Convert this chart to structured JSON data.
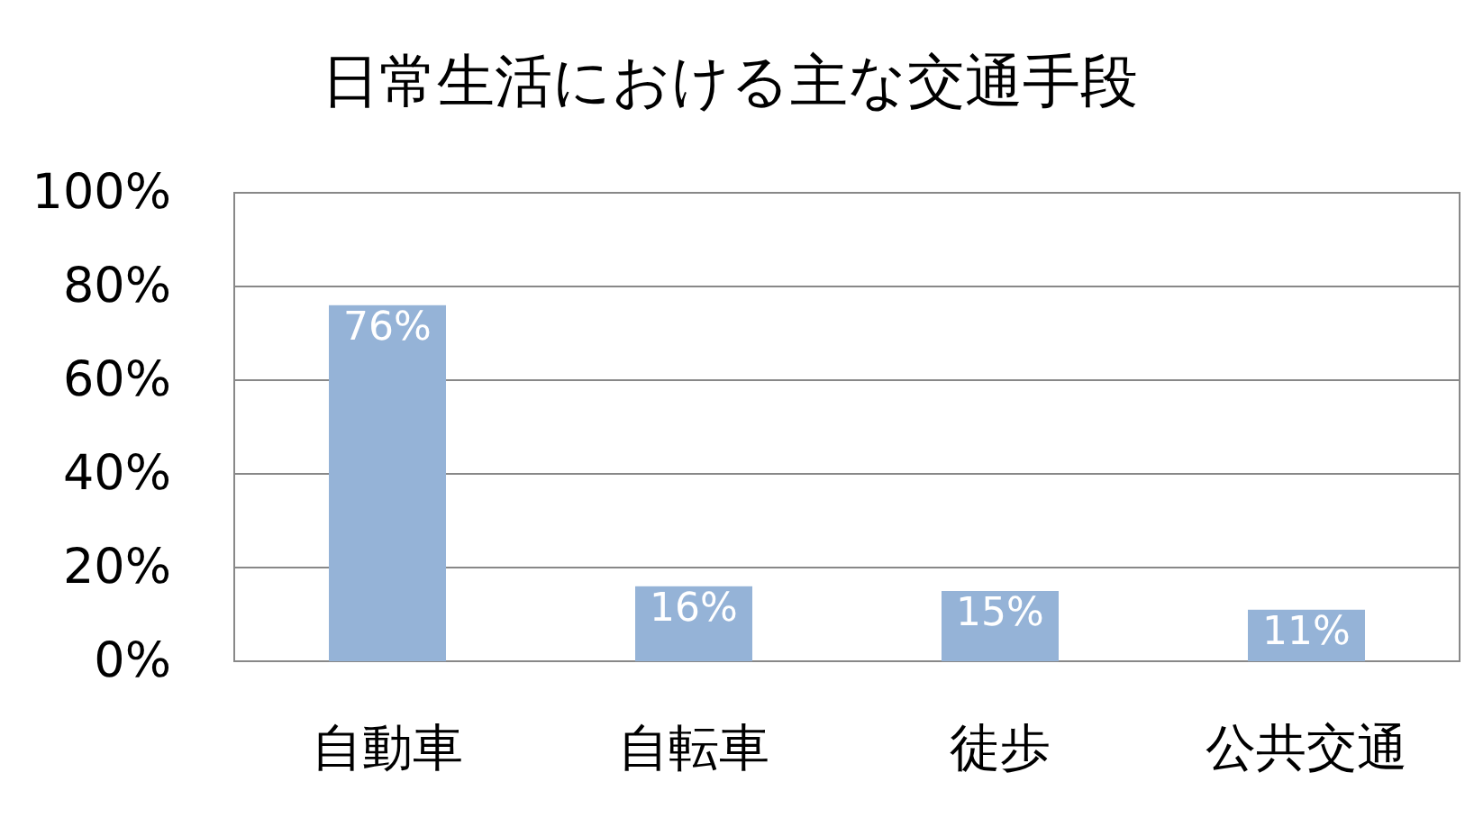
{
  "chart_data": {
    "type": "bar",
    "title": "日常生活における主な交通手段",
    "categories": [
      "自動車",
      "自転車",
      "徒歩",
      "公共交通"
    ],
    "values": [
      76,
      16,
      15,
      11
    ],
    "value_labels": [
      "76%",
      "16%",
      "15%",
      "11%"
    ],
    "color": "#95b3d7",
    "ylim": [
      0,
      100
    ],
    "yticks": [
      {
        "value": 0,
        "label": "0%"
      },
      {
        "value": 20,
        "label": "20%"
      },
      {
        "value": 40,
        "label": "40%"
      },
      {
        "value": 60,
        "label": "60%"
      },
      {
        "value": 80,
        "label": "80%"
      },
      {
        "value": 100,
        "label": "100%"
      }
    ],
    "grid": "y"
  }
}
